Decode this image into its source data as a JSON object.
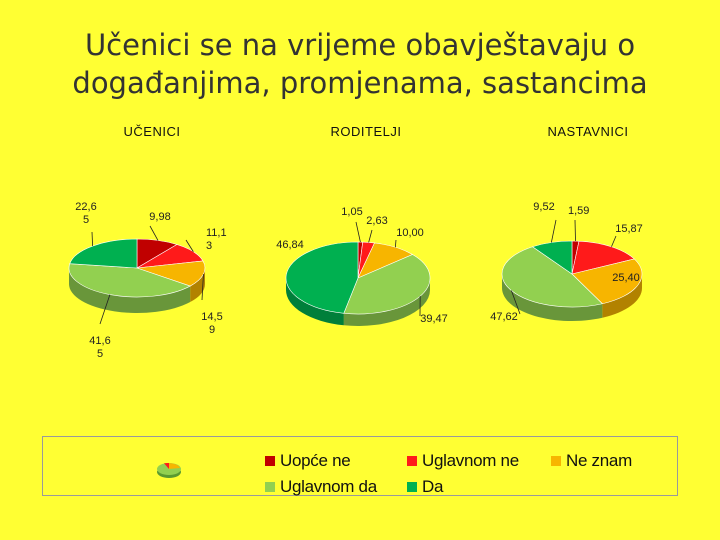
{
  "title_line1": "Učenici se na vrijeme obavještavaju o",
  "title_line2": "događanjima, promjenama, sastancima",
  "chart_data": [
    {
      "type": "pie",
      "title": "UČENICI",
      "categories": [
        "Uopće ne",
        "Uglavnom ne",
        "Ne znam",
        "Uglavnom da",
        "Da"
      ],
      "values": [
        9.98,
        11.13,
        14.59,
        41.65,
        22.65
      ],
      "labels": [
        [
          "9,98"
        ],
        [
          "11,1",
          "3"
        ],
        [
          "14,5",
          "9"
        ],
        [
          "41,6",
          "5"
        ],
        [
          "22,6",
          "5"
        ]
      ],
      "colors": [
        "#c00000",
        "#ff1a1a",
        "#f7b500",
        "#92d050",
        "#00b050"
      ]
    },
    {
      "type": "pie",
      "title": "RODITELJI",
      "categories": [
        "Uopće ne",
        "Uglavnom ne",
        "Ne znam",
        "Uglavnom da",
        "Da"
      ],
      "values": [
        1.05,
        2.63,
        10.0,
        39.47,
        46.84
      ],
      "labels": [
        [
          "1,05"
        ],
        [
          "2,63"
        ],
        [
          "10,00"
        ],
        [
          "39,47"
        ],
        [
          "46,84"
        ]
      ],
      "colors": [
        "#c00000",
        "#ff1a1a",
        "#f7b500",
        "#92d050",
        "#00b050"
      ]
    },
    {
      "type": "pie",
      "title": "NASTAVNICI",
      "categories": [
        "Uopće ne",
        "Uglavnom ne",
        "Ne znam",
        "Uglavnom da",
        "Da"
      ],
      "values": [
        1.59,
        15.87,
        25.4,
        47.62,
        9.52
      ],
      "labels": [
        [
          "1,59"
        ],
        [
          "15,87"
        ],
        [
          "25,40"
        ],
        [
          "47,62"
        ],
        [
          "9,52"
        ]
      ],
      "colors": [
        "#c00000",
        "#ff1a1a",
        "#f7b500",
        "#92d050",
        "#00b050"
      ]
    }
  ],
  "legend": [
    {
      "label": "Uopće ne",
      "color": "#c00000"
    },
    {
      "label": "Uglavnom ne",
      "color": "#ff1a1a"
    },
    {
      "label": "Ne znam",
      "color": "#f7b500"
    },
    {
      "label": "Uglavnom da",
      "color": "#92d050"
    },
    {
      "label": "Da",
      "color": "#00b050"
    }
  ]
}
